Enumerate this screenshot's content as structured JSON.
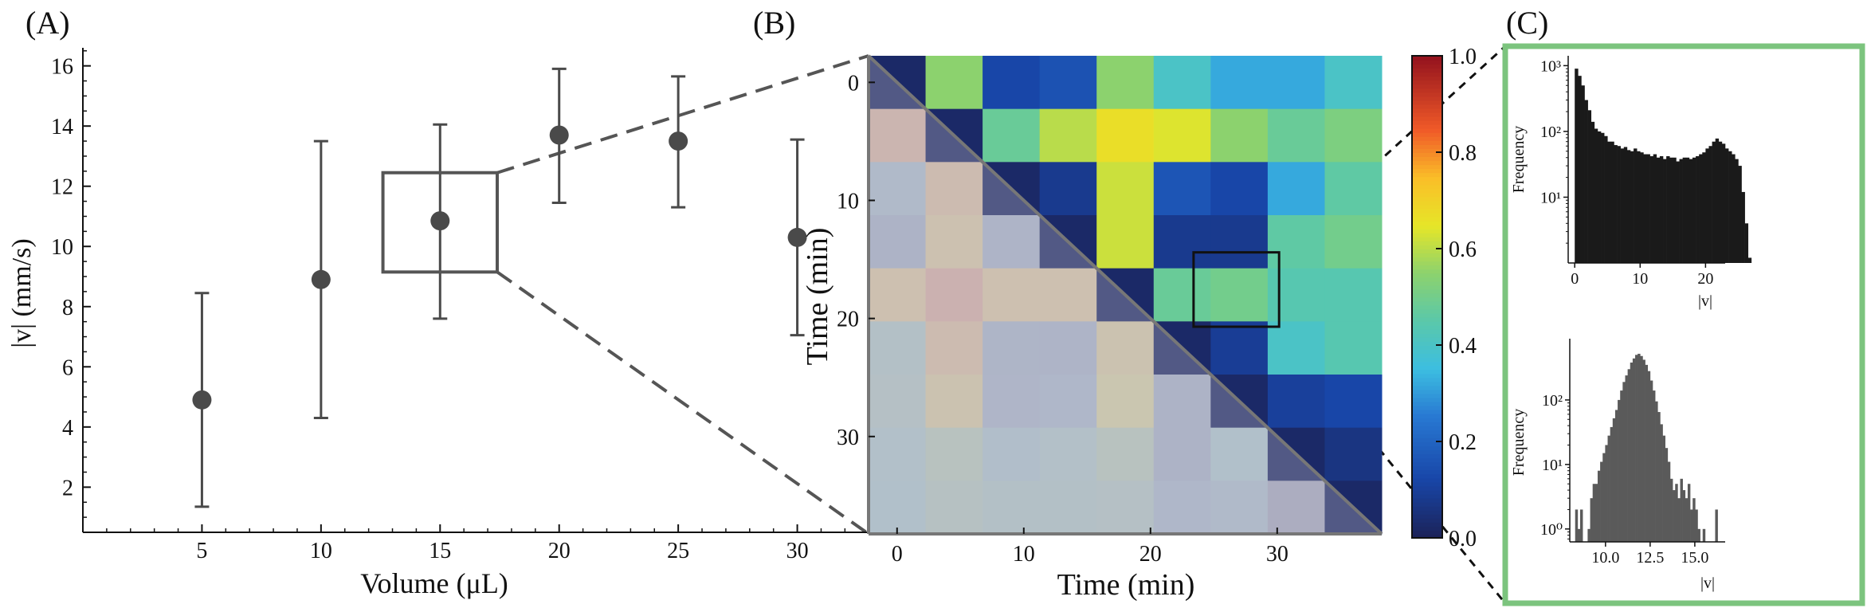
{
  "chart_data": [
    {
      "panel": "(A)",
      "type": "scatter",
      "xlabel": "Volume (μL)",
      "ylabel": "|v| (mm/s)",
      "xlim": [
        0,
        35
      ],
      "ylim": [
        0.5,
        16.6
      ],
      "xticks": [
        5,
        10,
        15,
        20,
        25,
        30
      ],
      "yticks": [
        2,
        4,
        6,
        8,
        10,
        12,
        14,
        16
      ],
      "x": [
        5,
        10,
        15,
        20,
        25,
        30
      ],
      "y": [
        4.9,
        8.9,
        10.85,
        13.7,
        13.5,
        10.3
      ],
      "err_low": [
        1.35,
        4.3,
        7.6,
        11.45,
        11.3,
        7.05
      ],
      "err_high": [
        8.45,
        13.5,
        14.05,
        15.9,
        15.65,
        13.55
      ],
      "inset_box": {
        "x": [
          12.6,
          17.4
        ],
        "y": [
          9.15,
          12.45
        ]
      }
    },
    {
      "panel": "(B)",
      "type": "heatmap",
      "xlabel": "Time (min)",
      "ylabel": "Time (min)",
      "xticks": [
        0,
        10,
        20,
        30
      ],
      "yticks": [
        0,
        10,
        20,
        30
      ],
      "colorbar": {
        "min": 0.0,
        "max": 1.0,
        "ticks": [
          "0.0",
          "0.2",
          "0.4",
          "0.6",
          "0.8",
          "1.0"
        ]
      },
      "cell_minutes": 4.5,
      "values": [
        [
          0.02,
          0.55,
          0.12,
          0.15,
          0.55,
          0.4,
          0.32,
          0.32,
          0.4
        ],
        [
          0.82,
          0.02,
          0.48,
          0.6,
          0.67,
          0.64,
          0.55,
          0.48,
          0.52
        ],
        [
          0.3,
          0.78,
          0.02,
          0.08,
          0.62,
          0.16,
          0.12,
          0.32,
          0.46
        ],
        [
          0.2,
          0.73,
          0.22,
          0.02,
          0.62,
          0.08,
          0.08,
          0.46,
          0.5
        ],
        [
          0.75,
          0.85,
          0.75,
          0.75,
          0.02,
          0.48,
          0.5,
          0.44,
          0.44
        ],
        [
          0.4,
          0.78,
          0.23,
          0.22,
          0.7,
          0.02,
          0.09,
          0.4,
          0.44
        ],
        [
          0.42,
          0.7,
          0.25,
          0.26,
          0.65,
          0.2,
          0.02,
          0.1,
          0.12
        ],
        [
          0.36,
          0.48,
          0.33,
          0.38,
          0.48,
          0.2,
          0.35,
          0.02,
          0.06
        ],
        [
          0.35,
          0.45,
          0.4,
          0.4,
          0.42,
          0.26,
          0.3,
          0.1,
          0.02
        ]
      ],
      "zoom_box": {
        "row": 5,
        "cols": [
          5.7,
          7.2
        ]
      }
    },
    {
      "panel": "(C)",
      "type": "bar",
      "subtitle": "top histogram",
      "xlabel": "|v|",
      "ylabel": "Frequency",
      "log_y": true,
      "xlim": [
        -1,
        23
      ],
      "ylim_log10": [
        0,
        3.15
      ],
      "xticks": [
        0,
        10,
        20
      ],
      "ytick_labels": [
        "10¹",
        "10²",
        "10³"
      ],
      "bin_width": 0.5,
      "bin_start": 0,
      "counts": [
        900,
        700,
        500,
        300,
        210,
        140,
        110,
        100,
        95,
        85,
        70,
        70,
        62,
        60,
        55,
        58,
        52,
        50,
        55,
        50,
        48,
        45,
        45,
        42,
        45,
        40,
        42,
        38,
        42,
        40,
        40,
        35,
        38,
        40,
        40,
        38,
        40,
        42,
        45,
        48,
        55,
        60,
        70,
        78,
        70,
        65,
        55,
        50,
        45,
        38,
        30,
        12,
        4,
        1.2
      ]
    },
    {
      "panel": "(C)",
      "type": "bar",
      "subtitle": "bottom histogram",
      "xlabel": "|v|",
      "ylabel": "Frequency",
      "log_y": true,
      "xlim": [
        8.0,
        16.7
      ],
      "ylim_log10": [
        -0.2,
        2.95
      ],
      "xtick_values": [
        10,
        12.5,
        15
      ],
      "xtick_labels": [
        "10.0",
        "12.5",
        "15.0"
      ],
      "ytick_labels": [
        "10⁰",
        "10¹",
        "10²"
      ],
      "bin_start": 8.3,
      "bin_width": 0.14,
      "counts": [
        2,
        1,
        2,
        0,
        0,
        1,
        3,
        5,
        5,
        8,
        11,
        15,
        20,
        28,
        38,
        52,
        70,
        100,
        140,
        190,
        240,
        300,
        380,
        440,
        500,
        520,
        480,
        420,
        350,
        280,
        200,
        140,
        95,
        65,
        42,
        28,
        18,
        11,
        6,
        4,
        5,
        3,
        6,
        4,
        3,
        5,
        2,
        3,
        2,
        1,
        0,
        1,
        0,
        0,
        0,
        0,
        2,
        0,
        0,
        0
      ]
    }
  ],
  "panels": {
    "a_label": "(A)",
    "b_label": "(B)",
    "c_label": "(C)"
  },
  "colors": {
    "points": "#4a4a4a",
    "dash": "#555555",
    "frame_c": "#7cc47e",
    "hist_top": "#1a1a1a",
    "hist_bottom": "#5a5a5a"
  }
}
